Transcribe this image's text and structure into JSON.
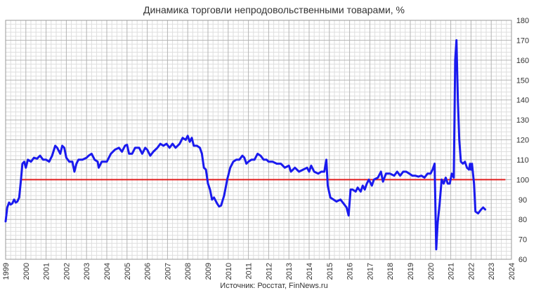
{
  "chart_data": {
    "type": "line",
    "title": "Динамика торговли непродовольственными товарами, %",
    "source": "Источник: Росстат, FinNews.ru",
    "x_ticks": [
      "1999",
      "2000",
      "2001",
      "2002",
      "2003",
      "2004",
      "2005",
      "2006",
      "2007",
      "2008",
      "2009",
      "2010",
      "2011",
      "2012",
      "2013",
      "2014",
      "2015",
      "2016",
      "2017",
      "2018",
      "2019",
      "2020",
      "2021",
      "2022",
      "2023",
      "2024"
    ],
    "y_ticks": [
      "60",
      "70",
      "80",
      "90",
      "100",
      "110",
      "120",
      "130",
      "140",
      "150",
      "160",
      "170",
      "180"
    ],
    "xlim": [
      1999,
      2024
    ],
    "ylim": [
      60,
      180
    ],
    "grid": true,
    "reference_line": {
      "y": 100,
      "color": "#e02020"
    },
    "series": [
      {
        "color": "#1a1aee",
        "points": [
          [
            1999.0,
            79
          ],
          [
            1999.08,
            86
          ],
          [
            1999.17,
            88.5
          ],
          [
            1999.25,
            87.5
          ],
          [
            1999.33,
            88
          ],
          [
            1999.42,
            90
          ],
          [
            1999.5,
            88.5
          ],
          [
            1999.58,
            89
          ],
          [
            1999.67,
            91
          ],
          [
            1999.75,
            99
          ],
          [
            1999.83,
            108
          ],
          [
            1999.92,
            109
          ],
          [
            2000.0,
            106
          ],
          [
            2000.1,
            110
          ],
          [
            2000.25,
            109
          ],
          [
            2000.4,
            111
          ],
          [
            2000.55,
            110.5
          ],
          [
            2000.7,
            112
          ],
          [
            2000.85,
            110
          ],
          [
            2001.0,
            110
          ],
          [
            2001.15,
            109
          ],
          [
            2001.3,
            112
          ],
          [
            2001.45,
            117
          ],
          [
            2001.55,
            116
          ],
          [
            2001.7,
            113
          ],
          [
            2001.8,
            117
          ],
          [
            2001.9,
            116
          ],
          [
            2002.0,
            111
          ],
          [
            2002.15,
            109
          ],
          [
            2002.3,
            109
          ],
          [
            2002.4,
            104
          ],
          [
            2002.5,
            108
          ],
          [
            2002.6,
            110
          ],
          [
            2002.8,
            110
          ],
          [
            2003.0,
            111
          ],
          [
            2003.1,
            112
          ],
          [
            2003.25,
            113
          ],
          [
            2003.4,
            110
          ],
          [
            2003.55,
            109
          ],
          [
            2003.6,
            106
          ],
          [
            2003.75,
            109
          ],
          [
            2004.0,
            109
          ],
          [
            2004.2,
            113
          ],
          [
            2004.4,
            115
          ],
          [
            2004.6,
            116
          ],
          [
            2004.75,
            114
          ],
          [
            2004.9,
            117
          ],
          [
            2005.0,
            117.5
          ],
          [
            2005.1,
            113
          ],
          [
            2005.25,
            113
          ],
          [
            2005.4,
            116
          ],
          [
            2005.6,
            116
          ],
          [
            2005.75,
            113
          ],
          [
            2005.9,
            116
          ],
          [
            2006.0,
            115
          ],
          [
            2006.15,
            112
          ],
          [
            2006.3,
            114
          ],
          [
            2006.5,
            116
          ],
          [
            2006.65,
            118
          ],
          [
            2006.8,
            117
          ],
          [
            2006.95,
            118
          ],
          [
            2007.1,
            116
          ],
          [
            2007.25,
            118
          ],
          [
            2007.4,
            116
          ],
          [
            2007.6,
            118
          ],
          [
            2007.75,
            121
          ],
          [
            2007.9,
            120
          ],
          [
            2008.0,
            122
          ],
          [
            2008.1,
            119
          ],
          [
            2008.2,
            121
          ],
          [
            2008.3,
            117
          ],
          [
            2008.45,
            117
          ],
          [
            2008.6,
            116
          ],
          [
            2008.7,
            113
          ],
          [
            2008.8,
            106
          ],
          [
            2008.9,
            105
          ],
          [
            2009.0,
            98
          ],
          [
            2009.1,
            95
          ],
          [
            2009.2,
            90
          ],
          [
            2009.3,
            91
          ],
          [
            2009.45,
            88
          ],
          [
            2009.55,
            86.5
          ],
          [
            2009.65,
            87
          ],
          [
            2009.8,
            92
          ],
          [
            2009.95,
            100
          ],
          [
            2010.1,
            106
          ],
          [
            2010.25,
            109
          ],
          [
            2010.4,
            110
          ],
          [
            2010.55,
            110
          ],
          [
            2010.7,
            112
          ],
          [
            2010.8,
            111
          ],
          [
            2010.9,
            108
          ],
          [
            2011.0,
            109
          ],
          [
            2011.15,
            110
          ],
          [
            2011.3,
            110
          ],
          [
            2011.45,
            113
          ],
          [
            2011.6,
            112
          ],
          [
            2011.75,
            110
          ],
          [
            2011.9,
            110
          ],
          [
            2012.0,
            109
          ],
          [
            2012.2,
            109
          ],
          [
            2012.4,
            108
          ],
          [
            2012.6,
            108
          ],
          [
            2012.8,
            106
          ],
          [
            2013.0,
            107
          ],
          [
            2013.1,
            104
          ],
          [
            2013.3,
            106
          ],
          [
            2013.5,
            104
          ],
          [
            2013.7,
            105
          ],
          [
            2013.9,
            106
          ],
          [
            2014.0,
            104
          ],
          [
            2014.1,
            107
          ],
          [
            2014.25,
            104
          ],
          [
            2014.45,
            103
          ],
          [
            2014.6,
            104
          ],
          [
            2014.75,
            104
          ],
          [
            2014.85,
            110
          ],
          [
            2014.92,
            97
          ],
          [
            2015.05,
            91
          ],
          [
            2015.2,
            90
          ],
          [
            2015.35,
            89
          ],
          [
            2015.55,
            90
          ],
          [
            2015.7,
            88
          ],
          [
            2015.85,
            86
          ],
          [
            2015.95,
            82
          ],
          [
            2016.05,
            95
          ],
          [
            2016.15,
            95
          ],
          [
            2016.3,
            94
          ],
          [
            2016.4,
            96
          ],
          [
            2016.55,
            94
          ],
          [
            2016.65,
            97
          ],
          [
            2016.75,
            95
          ],
          [
            2016.85,
            98
          ],
          [
            2016.95,
            100
          ],
          [
            2017.1,
            97
          ],
          [
            2017.2,
            100
          ],
          [
            2017.4,
            101
          ],
          [
            2017.55,
            104
          ],
          [
            2017.65,
            99
          ],
          [
            2017.8,
            103
          ],
          [
            2018.0,
            103
          ],
          [
            2018.2,
            102
          ],
          [
            2018.35,
            104
          ],
          [
            2018.5,
            102
          ],
          [
            2018.65,
            104
          ],
          [
            2018.8,
            104
          ],
          [
            2018.95,
            103
          ],
          [
            2019.1,
            102
          ],
          [
            2019.25,
            102
          ],
          [
            2019.4,
            101.5
          ],
          [
            2019.55,
            102
          ],
          [
            2019.7,
            101
          ],
          [
            2019.85,
            103
          ],
          [
            2020.0,
            103
          ],
          [
            2020.1,
            105
          ],
          [
            2020.2,
            108
          ],
          [
            2020.28,
            65
          ],
          [
            2020.35,
            78
          ],
          [
            2020.45,
            88
          ],
          [
            2020.55,
            100
          ],
          [
            2020.65,
            98
          ],
          [
            2020.75,
            101
          ],
          [
            2020.85,
            98
          ],
          [
            2020.95,
            98
          ],
          [
            2021.05,
            103
          ],
          [
            2021.15,
            101
          ],
          [
            2021.22,
            160
          ],
          [
            2021.28,
            170
          ],
          [
            2021.35,
            140
          ],
          [
            2021.42,
            120
          ],
          [
            2021.5,
            109
          ],
          [
            2021.6,
            108
          ],
          [
            2021.7,
            109
          ],
          [
            2021.8,
            106
          ],
          [
            2021.9,
            105
          ],
          [
            2021.95,
            108
          ],
          [
            2022.0,
            105
          ],
          [
            2022.05,
            108
          ],
          [
            2022.15,
            98
          ],
          [
            2022.22,
            84
          ],
          [
            2022.35,
            83
          ],
          [
            2022.5,
            85
          ],
          [
            2022.6,
            86
          ],
          [
            2022.7,
            85
          ]
        ]
      }
    ]
  }
}
